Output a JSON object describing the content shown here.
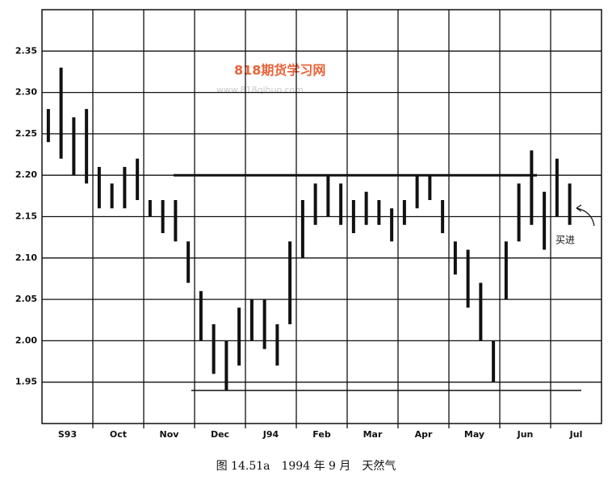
{
  "chart_data": {
    "type": "range",
    "title": "图 14.51a　1994 年 9 月　天然气",
    "watermark": "818期货学习网",
    "watermark_url": "www.818qihuo.com",
    "annotation": "买进",
    "categories": [
      null,
      "S93",
      null,
      null,
      null,
      "Oct",
      null,
      null,
      null,
      "Nov",
      null,
      null,
      null,
      "Dec",
      null,
      null,
      null,
      "J94",
      null,
      null,
      null,
      "Feb",
      null,
      null,
      null,
      "Mar",
      null,
      null,
      null,
      "Apr",
      null,
      null,
      null,
      "May",
      null,
      null,
      null,
      "Jun",
      null,
      null,
      null,
      "Jul",
      null,
      null
    ],
    "high": [
      2.28,
      2.33,
      2.27,
      2.28,
      2.21,
      2.19,
      2.21,
      2.22,
      2.17,
      2.17,
      2.17,
      2.12,
      2.06,
      2.02,
      2.0,
      2.04,
      2.05,
      2.05,
      2.02,
      2.12,
      2.17,
      2.19,
      2.2,
      2.19,
      2.17,
      2.18,
      2.17,
      2.16,
      2.17,
      2.2,
      2.2,
      2.17,
      2.12,
      2.11,
      2.07,
      2.0,
      2.12,
      2.19,
      2.23,
      2.18,
      2.22,
      2.19,
      null,
      null
    ],
    "low": [
      2.24,
      2.22,
      2.2,
      2.19,
      2.16,
      2.16,
      2.16,
      2.17,
      2.15,
      2.13,
      2.12,
      2.07,
      2.0,
      1.96,
      1.94,
      1.97,
      2.0,
      1.99,
      1.97,
      2.02,
      2.1,
      2.14,
      2.15,
      2.14,
      2.13,
      2.14,
      2.14,
      2.12,
      2.14,
      2.16,
      2.17,
      2.13,
      2.08,
      2.04,
      2.0,
      1.95,
      2.05,
      2.12,
      2.14,
      2.11,
      2.15,
      2.14,
      null,
      null
    ],
    "color": "#111111",
    "ylim": [
      1.9,
      2.4
    ],
    "yticks": [
      1.95,
      {
        "value": 2,
        "label": "2.00"
      },
      2.05,
      {
        "value": 2.1,
        "label": "2.10"
      },
      2.15,
      {
        "value": 2.2,
        "label": "2.20"
      },
      2.25,
      {
        "value": 2.3,
        "label": "2.30"
      },
      2.35
    ],
    "reference_lines": [
      2.2,
      1.94
    ],
    "grid": true
  }
}
